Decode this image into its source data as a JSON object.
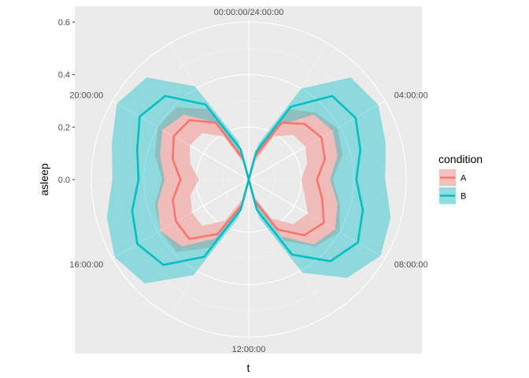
{
  "chart_data": {
    "type": "line",
    "coord": "polar",
    "xlabel": "t",
    "ylabel": "asleep",
    "y_ticks": [
      "0.0",
      "0.2",
      "0.4",
      "0.6"
    ],
    "angle_ticks": [
      "00:00:00/24:00:00",
      "04:00:00",
      "08:00:00",
      "12:00:00",
      "16:00:00",
      "20:00:00"
    ],
    "legend": {
      "title": "condition",
      "position": "right"
    },
    "grid": true,
    "series": [
      {
        "name": "A",
        "color": "#F8766D",
        "fill": "#F8766D",
        "hours": [
          0,
          1,
          2,
          3,
          4,
          5,
          6,
          7,
          8,
          9,
          10,
          11,
          12,
          13,
          14,
          15,
          16,
          17,
          18,
          19,
          20,
          21,
          22,
          23,
          24
        ],
        "mean": [
          0.0,
          0.09,
          0.25,
          0.3,
          0.32,
          0.3,
          0.26,
          0.29,
          0.33,
          0.3,
          0.22,
          0.08,
          0.0,
          0.1,
          0.24,
          0.32,
          0.32,
          0.3,
          0.26,
          0.3,
          0.33,
          0.32,
          0.25,
          0.08,
          0.0
        ],
        "lower": [
          0.0,
          0.06,
          0.19,
          0.24,
          0.25,
          0.23,
          0.2,
          0.22,
          0.26,
          0.24,
          0.17,
          0.06,
          0.0,
          0.07,
          0.18,
          0.25,
          0.25,
          0.23,
          0.19,
          0.23,
          0.26,
          0.25,
          0.19,
          0.06,
          0.0
        ],
        "upper": [
          0.0,
          0.12,
          0.31,
          0.36,
          0.39,
          0.37,
          0.32,
          0.36,
          0.4,
          0.36,
          0.27,
          0.1,
          0.0,
          0.13,
          0.3,
          0.39,
          0.39,
          0.37,
          0.33,
          0.37,
          0.4,
          0.39,
          0.31,
          0.1,
          0.0
        ]
      },
      {
        "name": "B",
        "color": "#00BFC4",
        "fill": "#00BFC4",
        "hours": [
          0,
          1,
          2,
          3,
          4,
          5,
          6,
          7,
          8,
          9,
          10,
          11,
          12,
          13,
          14,
          15,
          16,
          17,
          18,
          19,
          20,
          21,
          22,
          23,
          24
        ],
        "mean": [
          0.0,
          0.11,
          0.32,
          0.45,
          0.47,
          0.44,
          0.41,
          0.45,
          0.48,
          0.44,
          0.33,
          0.12,
          0.0,
          0.12,
          0.34,
          0.46,
          0.49,
          0.46,
          0.42,
          0.44,
          0.48,
          0.45,
          0.33,
          0.12,
          0.0
        ],
        "lower": [
          0.0,
          0.08,
          0.24,
          0.35,
          0.37,
          0.35,
          0.31,
          0.35,
          0.38,
          0.35,
          0.25,
          0.09,
          0.0,
          0.09,
          0.26,
          0.36,
          0.39,
          0.36,
          0.32,
          0.35,
          0.38,
          0.35,
          0.25,
          0.09,
          0.0
        ],
        "upper": [
          0.0,
          0.14,
          0.4,
          0.55,
          0.57,
          0.54,
          0.52,
          0.56,
          0.58,
          0.53,
          0.41,
          0.15,
          0.0,
          0.15,
          0.42,
          0.56,
          0.59,
          0.56,
          0.52,
          0.54,
          0.58,
          0.55,
          0.41,
          0.15,
          0.0
        ]
      }
    ]
  }
}
